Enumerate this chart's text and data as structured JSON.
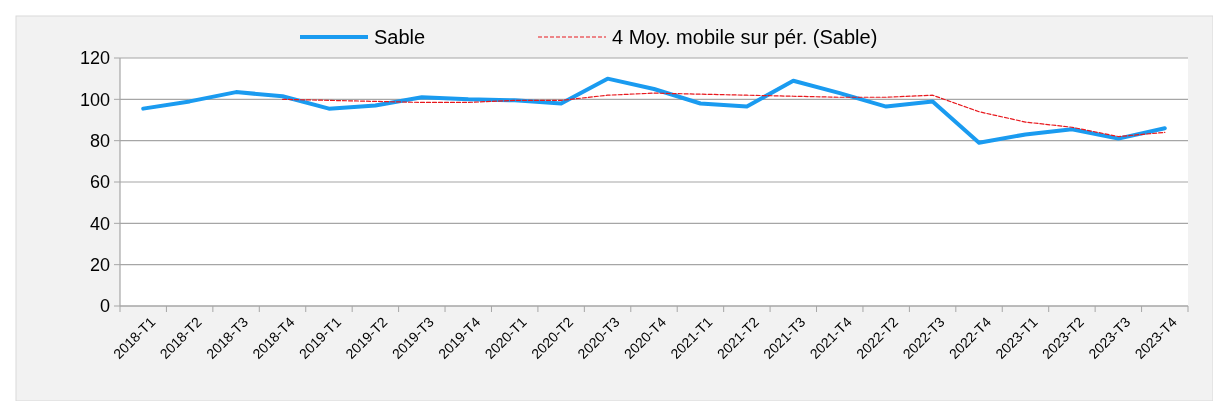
{
  "chart_data": {
    "type": "line",
    "categories": [
      "2018-T1",
      "2018-T2",
      "2018-T3",
      "2018-T4",
      "2019-T1",
      "2019-T2",
      "2019-T3",
      "2019-T4",
      "2020-T1",
      "2020-T2",
      "2020-T3",
      "2020-T4",
      "2021-T1",
      "2021-T2",
      "2021-T3",
      "2021-T4",
      "2022-T2",
      "2022-T3",
      "2022-T4",
      "2023-T1",
      "2023-T2",
      "2023-T3",
      "2023-T4"
    ],
    "series": [
      {
        "name": "Sable",
        "color": "#1a9bf0",
        "line_style": "solid",
        "values": [
          95.5,
          99,
          103.5,
          101.5,
          95.5,
          97,
          101,
          100,
          99.5,
          98,
          110,
          105,
          98,
          96.5,
          109,
          103,
          96.5,
          99,
          79,
          83,
          85.5,
          81,
          86
        ]
      },
      {
        "name": "4 Moy. mobile sur pér. (Sable)",
        "color": "#e8191e",
        "line_style": "dashed",
        "values": [
          null,
          null,
          null,
          100,
          99.5,
          99,
          98.5,
          98.5,
          99.5,
          99.5,
          102,
          103,
          102.5,
          102,
          101.5,
          101,
          101,
          102,
          94,
          89,
          86.5,
          82,
          84
        ]
      }
    ],
    "ylim": [
      0,
      120
    ],
    "yticks": [
      0,
      20,
      40,
      60,
      80,
      100,
      120
    ],
    "grid": "y",
    "legend": "top",
    "marker": "none"
  }
}
